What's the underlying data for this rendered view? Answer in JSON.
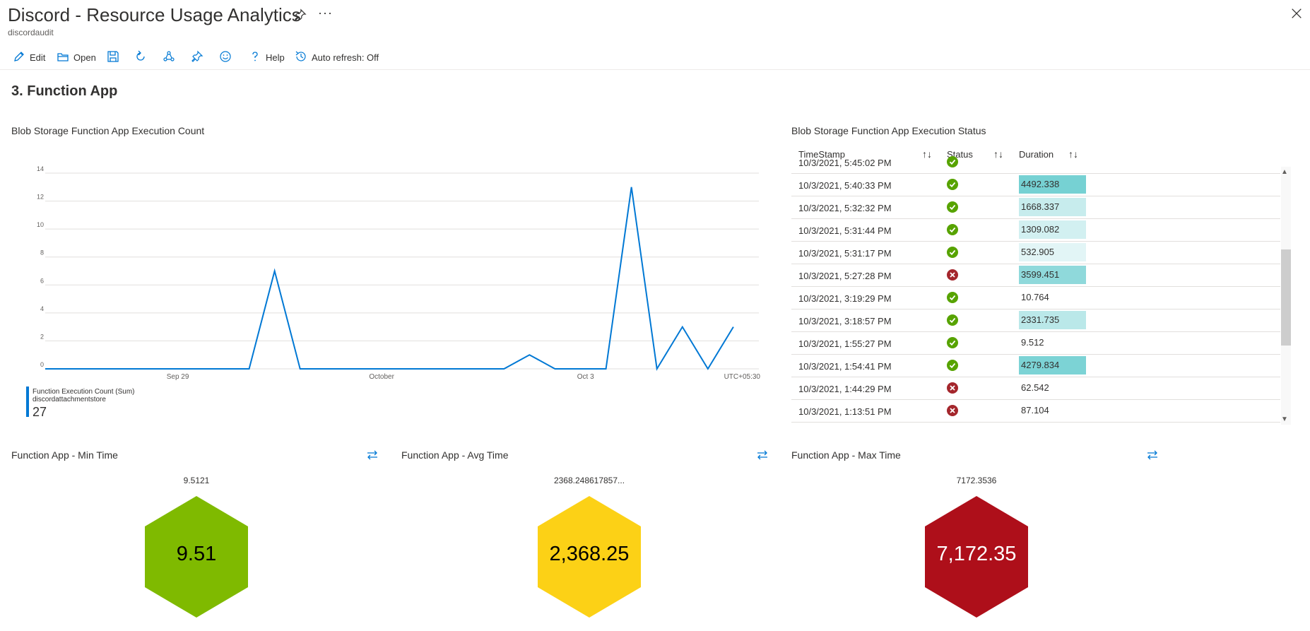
{
  "header": {
    "title": "Discord - Resource Usage Analytics",
    "subtitle": "discordaudit",
    "more": "···"
  },
  "toolbar": {
    "edit": "Edit",
    "open": "Open",
    "help": "Help",
    "auto_refresh": "Auto refresh: Off"
  },
  "section_title": "3. Function App",
  "execution_count": {
    "title": "Blob Storage Function App Execution Count",
    "legend_name": "Function Execution Count (Sum)",
    "legend_resource": "discordattachmentstore",
    "legend_value": "27",
    "timezone": "UTC+05:30",
    "series_color": "#0078d4"
  },
  "chart_data": {
    "type": "line",
    "x": [
      0,
      1,
      2,
      3,
      4,
      5,
      6,
      7,
      8,
      9,
      10,
      11,
      12,
      13,
      14,
      15,
      16,
      17,
      18,
      19,
      20,
      21,
      22,
      23,
      24,
      25,
      26,
      27,
      28
    ],
    "x_tick_labels": [
      {
        "at": 5.2,
        "label": "Sep 29"
      },
      {
        "at": 13.2,
        "label": "October"
      },
      {
        "at": 21.2,
        "label": "Oct 3"
      }
    ],
    "series": [
      {
        "name": "Function Execution Count (Sum)",
        "values": [
          0,
          0,
          0,
          0,
          0,
          0,
          0,
          0,
          0,
          7,
          0,
          0,
          0,
          0,
          0,
          0,
          0,
          0,
          0,
          1,
          0,
          0,
          0,
          13,
          0,
          3,
          0,
          3,
          null
        ]
      }
    ],
    "ylim": [
      0,
      14
    ],
    "yticks": [
      0,
      2,
      4,
      6,
      8,
      10,
      12,
      14
    ],
    "xlabel": "",
    "ylabel": "",
    "grid": true
  },
  "status_table": {
    "title": "Blob Storage Function App Execution Status",
    "columns": [
      "TimeStamp",
      "Status",
      "Duration"
    ],
    "sort_icon": "↑↓",
    "partial_row_timestamp": "10/3/2021, 5:45:02 PM",
    "rows": [
      {
        "timestamp": "10/3/2021, 5:40:33 PM",
        "status": "success",
        "duration": "4492.338",
        "bar_level": 0.95
      },
      {
        "timestamp": "10/3/2021, 5:32:32 PM",
        "status": "success",
        "duration": "1668.337",
        "bar_level": 0.3
      },
      {
        "timestamp": "10/3/2021, 5:31:44 PM",
        "status": "success",
        "duration": "1309.082",
        "bar_level": 0.2
      },
      {
        "timestamp": "10/3/2021, 5:31:17 PM",
        "status": "success",
        "duration": "532.905",
        "bar_level": 0.08
      },
      {
        "timestamp": "10/3/2021, 5:27:28 PM",
        "status": "failure",
        "duration": "3599.451",
        "bar_level": 0.75
      },
      {
        "timestamp": "10/3/2021, 3:19:29 PM",
        "status": "success",
        "duration": "10.764",
        "bar_level": 0
      },
      {
        "timestamp": "10/3/2021, 3:18:57 PM",
        "status": "success",
        "duration": "2331.735",
        "bar_level": 0.4
      },
      {
        "timestamp": "10/3/2021, 1:55:27 PM",
        "status": "success",
        "duration": "9.512",
        "bar_level": 0
      },
      {
        "timestamp": "10/3/2021, 1:54:41 PM",
        "status": "success",
        "duration": "4279.834",
        "bar_level": 0.9
      },
      {
        "timestamp": "10/3/2021, 1:44:29 PM",
        "status": "failure",
        "duration": "62.542",
        "bar_level": 0
      },
      {
        "timestamp": "10/3/2021, 1:13:51 PM",
        "status": "failure",
        "duration": "87.104",
        "bar_level": 0
      }
    ]
  },
  "tiles": [
    {
      "title": "Function App - Min Time",
      "raw": "9.5121",
      "value": "9.51",
      "color": "#7fba00",
      "text_color": "#000000"
    },
    {
      "title": "Function App - Avg Time",
      "raw": "2368.248617857...",
      "value": "2,368.25",
      "color": "#fcd116",
      "text_color": "#000000"
    },
    {
      "title": "Function App - Max Time",
      "raw": "7172.3536",
      "value": "7,172.35",
      "color": "#ae0f1a",
      "text_color": "#ffffff"
    }
  ],
  "colors": {
    "accent": "#0078d4",
    "success": "#57a300",
    "failure": "#a4262c",
    "duration_bar": "#5fc9cc"
  },
  "icons": [
    "pin-icon",
    "more-icon",
    "close-icon",
    "edit-icon",
    "open-icon",
    "save-icon",
    "refresh-icon",
    "share-icon",
    "pin-icon",
    "feedback-icon",
    "help-icon",
    "history-icon",
    "swap-icon",
    "sort-icon",
    "success-icon",
    "failure-icon"
  ]
}
